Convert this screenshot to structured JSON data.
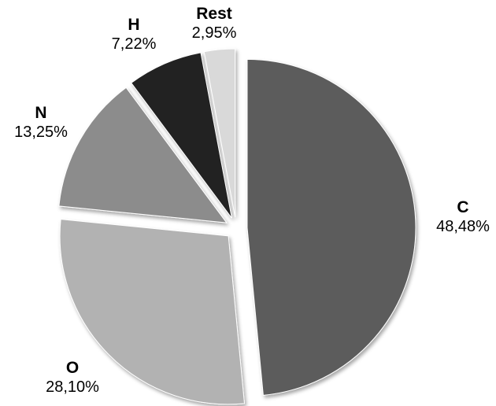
{
  "chart_data": {
    "type": "pie",
    "title": "",
    "start": "12 o'clock",
    "direction": "clockwise",
    "exploded": true,
    "legend": "none",
    "slices": [
      {
        "name": "C",
        "value": 48.48,
        "label": "48,48%",
        "color": "#5c5c5c"
      },
      {
        "name": "O",
        "value": 28.1,
        "label": "28,10%",
        "color": "#b2b2b2"
      },
      {
        "name": "N",
        "value": 13.25,
        "label": "13,25%",
        "color": "#8c8c8c"
      },
      {
        "name": "H",
        "value": 7.22,
        "label": "7,22%",
        "color": "#222222"
      },
      {
        "name": "Rest",
        "value": 2.95,
        "label": "2,95%",
        "color": "#d9d9d9"
      }
    ]
  }
}
